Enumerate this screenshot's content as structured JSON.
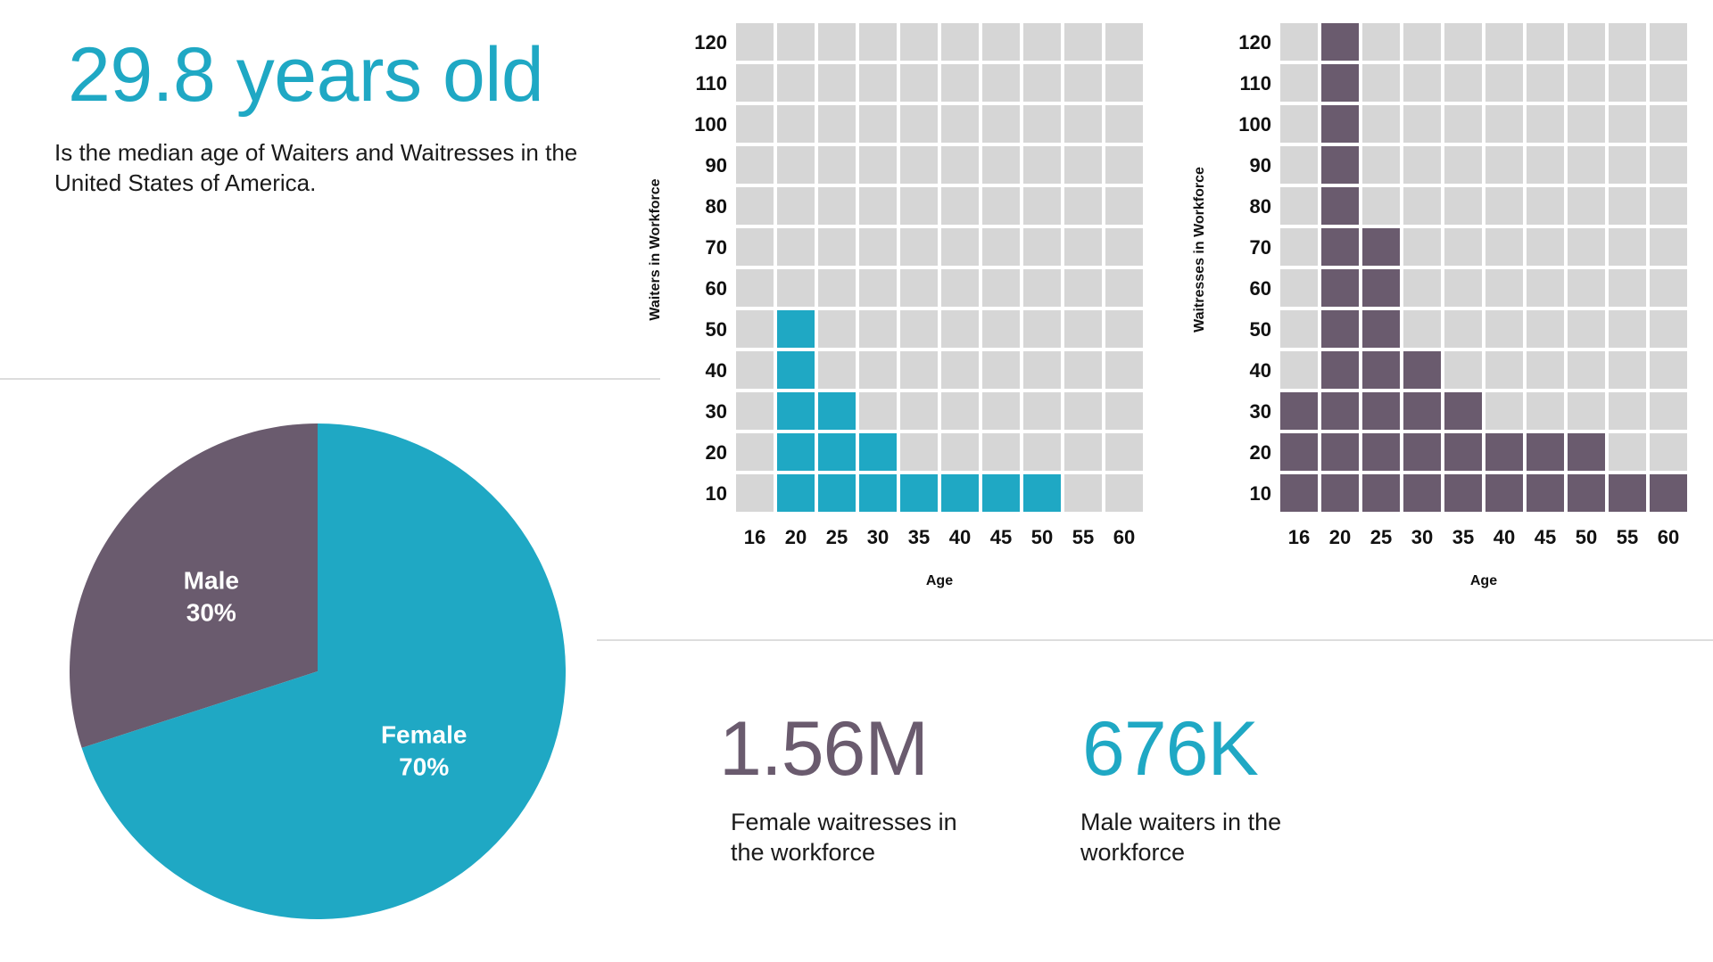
{
  "headline": {
    "value": "29.8 years old",
    "description": "Is the median age of Waiters and Waitresses in the United States of America."
  },
  "colors": {
    "teal": "#1fa8c4",
    "purple": "#6a5b6e",
    "empty": "#d6d6d6",
    "divider": "#dddddd",
    "text": "#1a1a1a"
  },
  "stats": [
    {
      "value": "1.56M",
      "caption": "Female waitresses in the workforce",
      "color": "#6a5b6e"
    },
    {
      "value": "676K",
      "caption": "Male waiters in the workforce",
      "color": "#1fa8c4"
    }
  ],
  "chart_data": [
    {
      "type": "pie",
      "slices": [
        {
          "label": "Male",
          "percent_label": "30%",
          "value": 30,
          "color": "#6a5b6e"
        },
        {
          "label": "Female",
          "percent_label": "70%",
          "value": 70,
          "color": "#1fa8c4"
        }
      ]
    },
    {
      "type": "heatmap",
      "xlabel": "Age",
      "ylabel": "Waiters in Workforce",
      "x": [
        "16",
        "20",
        "25",
        "30",
        "35",
        "40",
        "45",
        "50",
        "55",
        "60"
      ],
      "y": [
        "10",
        "20",
        "30",
        "40",
        "50",
        "60",
        "70",
        "80",
        "90",
        "100",
        "110",
        "120"
      ],
      "values": [
        0,
        50,
        30,
        20,
        10,
        10,
        10,
        10,
        0,
        0
      ],
      "ylim": [
        10,
        120
      ],
      "fill_color": "#1fa8c4",
      "empty_color": "#d6d6d6"
    },
    {
      "type": "heatmap",
      "xlabel": "Age",
      "ylabel": "Waitresses in Workforce",
      "x": [
        "16",
        "20",
        "25",
        "30",
        "35",
        "40",
        "45",
        "50",
        "55",
        "60"
      ],
      "y": [
        "10",
        "20",
        "30",
        "40",
        "50",
        "60",
        "70",
        "80",
        "90",
        "100",
        "110",
        "120"
      ],
      "values": [
        30,
        120,
        70,
        40,
        30,
        20,
        20,
        20,
        10,
        10
      ],
      "ylim": [
        10,
        120
      ],
      "fill_color": "#6a5b6e",
      "empty_color": "#d6d6d6"
    }
  ]
}
